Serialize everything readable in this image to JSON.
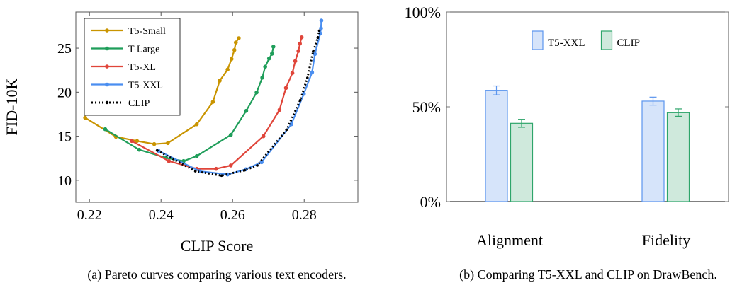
{
  "chart_data": [
    {
      "type": "line",
      "xlabel": "CLIP Score",
      "ylabel": "FID-10K",
      "xlim": [
        0.2162,
        0.295
      ],
      "ylim": [
        7.5,
        29.1
      ],
      "xticks": [
        "0.22",
        "0.24",
        "0.26",
        "0.28"
      ],
      "yticks": [
        "10",
        "15",
        "20",
        "25"
      ],
      "grid": false,
      "legend_position": "top-left",
      "caption": "(a) Pareto curves comparing various text encoders.",
      "series": [
        {
          "name": "T5-Small",
          "color": "#c99400",
          "style": "solid",
          "x": [
            0.2188,
            0.2274,
            0.2333,
            0.2381,
            0.2419,
            0.25,
            0.2545,
            0.2564,
            0.2586,
            0.2597,
            0.2605,
            0.2609,
            0.2617
          ],
          "y": [
            17.1,
            14.94,
            14.46,
            14.11,
            14.22,
            16.36,
            18.9,
            21.3,
            22.57,
            23.77,
            24.79,
            25.64,
            26.12
          ]
        },
        {
          "name": "T-Large",
          "color": "#1f9e5a",
          "style": "solid",
          "x": [
            0.2244,
            0.2339,
            0.2414,
            0.2463,
            0.25,
            0.2595,
            0.2638,
            0.2667,
            0.2683,
            0.2691,
            0.2702,
            0.271,
            0.2714
          ],
          "y": [
            15.8,
            13.47,
            12.54,
            12.18,
            12.75,
            15.15,
            17.88,
            19.97,
            21.65,
            22.89,
            23.82,
            24.36,
            25.16
          ]
        },
        {
          "name": "T5-XL",
          "color": "#e0453a",
          "style": "solid",
          "x": [
            0.2318,
            0.2422,
            0.25,
            0.2554,
            0.2595,
            0.2686,
            0.2731,
            0.2749,
            0.2767,
            0.2775,
            0.2784,
            0.2788,
            0.2793
          ],
          "y": [
            14.46,
            12.18,
            11.3,
            11.3,
            11.68,
            15.0,
            17.99,
            20.48,
            22.17,
            23.53,
            24.68,
            25.51,
            26.23
          ]
        },
        {
          "name": "T5-XXL",
          "color": "#4a8ef0",
          "style": "solid",
          "x": [
            0.2393,
            0.2508,
            0.2586,
            0.2637,
            0.2681,
            0.2764,
            0.2799,
            0.2822,
            0.283,
            0.2845,
            0.2847,
            0.2848
          ],
          "y": [
            13.34,
            11.03,
            10.66,
            11.25,
            12.05,
            16.36,
            19.81,
            22.25,
            24.33,
            26.66,
            27.25,
            28.13
          ]
        },
        {
          "name": "CLIP",
          "color": "#000000",
          "style": "dotted",
          "x": [
            0.2389,
            0.2496,
            0.2569,
            0.2634,
            0.2669,
            0.2751,
            0.2789,
            0.2809,
            0.2825,
            0.2838,
            0.2842
          ],
          "y": [
            13.39,
            11.03,
            10.53,
            11.14,
            11.68,
            15.74,
            19.09,
            21.63,
            24.62,
            26.18,
            26.98
          ]
        }
      ]
    },
    {
      "type": "bar",
      "categories": [
        "Alignment",
        "Fidelity"
      ],
      "ylim": [
        0,
        100
      ],
      "yticks": [
        "0%",
        "50%",
        "100%"
      ],
      "grid": false,
      "legend_position": "top-center",
      "caption": "(b) Comparing T5-XXL and CLIP on DrawBench.",
      "series": [
        {
          "name": "T5-XXL",
          "fill": "#d6e4fa",
          "stroke": "#5b95ee",
          "values": [
            58.7,
            53.0
          ],
          "err_low": [
            56.3,
            50.9
          ],
          "err_high": [
            61.0,
            55.1
          ]
        },
        {
          "name": "CLIP",
          "fill": "#cfe9dc",
          "stroke": "#2ea56a",
          "values": [
            41.3,
            46.9
          ],
          "err_low": [
            39.2,
            45.0
          ],
          "err_high": [
            43.4,
            48.9
          ]
        }
      ]
    }
  ]
}
